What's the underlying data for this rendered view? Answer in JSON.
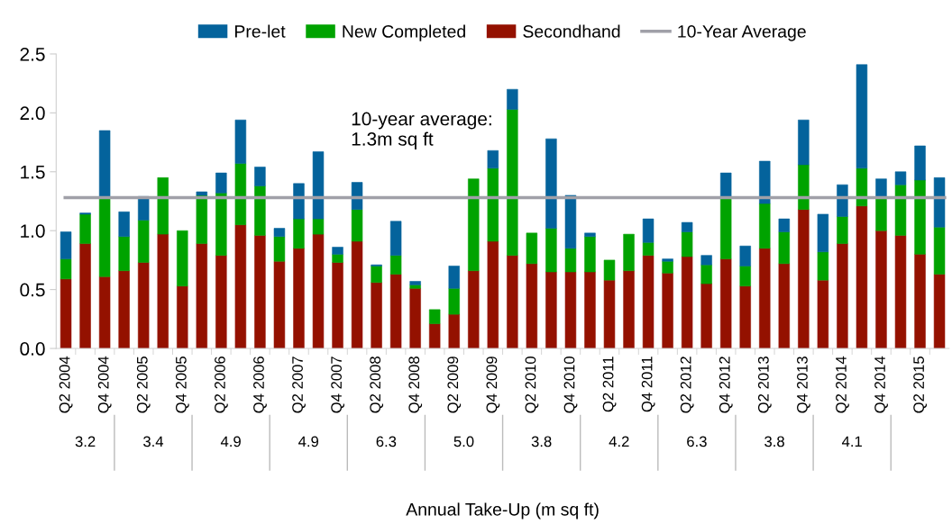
{
  "chart_data": {
    "type": "bar",
    "stacked": true,
    "categories": [
      "Q2 2004",
      null,
      "Q4 2004",
      null,
      "Q2 2005",
      null,
      "Q4 2005",
      null,
      "Q2 2006",
      null,
      "Q4 2006",
      null,
      "Q2 2007",
      null,
      "Q4 2007",
      null,
      "Q2 2008",
      null,
      "Q4 2008",
      null,
      "Q2 2009",
      null,
      "Q4 2009",
      null,
      "Q2 2010",
      null,
      "Q4 2010",
      null,
      "Q2 2011",
      null,
      "Q4 2011",
      null,
      "Q2 2012",
      null,
      "Q4 2012",
      null,
      "Q2 2013",
      null,
      "Q4 2013",
      null,
      "Q2 2014",
      null,
      "Q4 2014",
      null,
      "Q2 2015",
      null
    ],
    "series": [
      {
        "name": "Secondhand",
        "color": "#941100",
        "values": [
          0.59,
          0.89,
          0.61,
          0.66,
          0.73,
          0.97,
          0.53,
          0.89,
          0.79,
          1.05,
          0.96,
          0.74,
          0.85,
          0.97,
          0.73,
          0.91,
          0.56,
          0.63,
          0.51,
          0.21,
          0.29,
          0.66,
          0.91,
          0.79,
          0.72,
          0.65,
          0.65,
          0.65,
          0.58,
          0.66,
          0.79,
          0.64,
          0.78,
          0.55,
          0.76,
          0.53,
          0.85,
          0.72,
          1.18,
          0.58,
          0.89,
          1.21,
          1.0,
          0.96,
          0.8,
          0.63
        ]
      },
      {
        "name": "New Completed",
        "color": "#00a300",
        "values": [
          0.17,
          0.25,
          0.67,
          0.29,
          0.36,
          0.48,
          0.47,
          0.41,
          0.53,
          0.52,
          0.42,
          0.21,
          0.25,
          0.13,
          0.07,
          0.27,
          0.14,
          0.16,
          0.03,
          0.12,
          0.22,
          0.78,
          0.62,
          1.24,
          0.26,
          0.37,
          0.2,
          0.3,
          0.17,
          0.31,
          0.11,
          0.1,
          0.21,
          0.16,
          0.53,
          0.17,
          0.38,
          0.27,
          0.38,
          0.24,
          0.23,
          0.32,
          0.28,
          0.43,
          0.63,
          0.4
        ]
      },
      {
        "name": "Pre-let",
        "color": "#04639c",
        "values": [
          0.23,
          0.01,
          0.57,
          0.21,
          0.2,
          null,
          null,
          0.03,
          0.17,
          0.37,
          0.16,
          0.07,
          0.3,
          0.57,
          0.06,
          0.23,
          0.01,
          0.29,
          0.03,
          null,
          0.19,
          null,
          0.15,
          0.17,
          null,
          0.76,
          0.45,
          0.03,
          null,
          null,
          0.2,
          0.02,
          0.08,
          0.08,
          0.2,
          0.17,
          0.36,
          0.11,
          0.38,
          0.32,
          0.27,
          0.88,
          0.16,
          0.11,
          0.29,
          0.42
        ]
      }
    ],
    "ylim": [
      0,
      2.5
    ],
    "yticks": [
      {
        "value": 0,
        "label": "0.0"
      },
      {
        "value": 0.5,
        "label": "0.5"
      },
      {
        "value": 1,
        "label": "1.0"
      },
      {
        "value": 1.5,
        "label": "1.5"
      },
      {
        "value": 2,
        "label": "2.0"
      },
      {
        "value": 2.5,
        "label": "2.5"
      }
    ],
    "ref_lines": [
      {
        "axis": "y",
        "value": 1.28,
        "label": "10-Year Average",
        "color": "#a0a0a8"
      }
    ],
    "legend": "top",
    "grid": false,
    "annotations": [
      "10-year average:\n1.3m sq ft",
      "3.2",
      "3.4",
      "4.9",
      "4.9",
      "6.3",
      "5.0",
      "3.8",
      "4.2",
      "6.3",
      "3.8",
      "4.1",
      "Annual Take-Up (m sq ft)"
    ]
  }
}
